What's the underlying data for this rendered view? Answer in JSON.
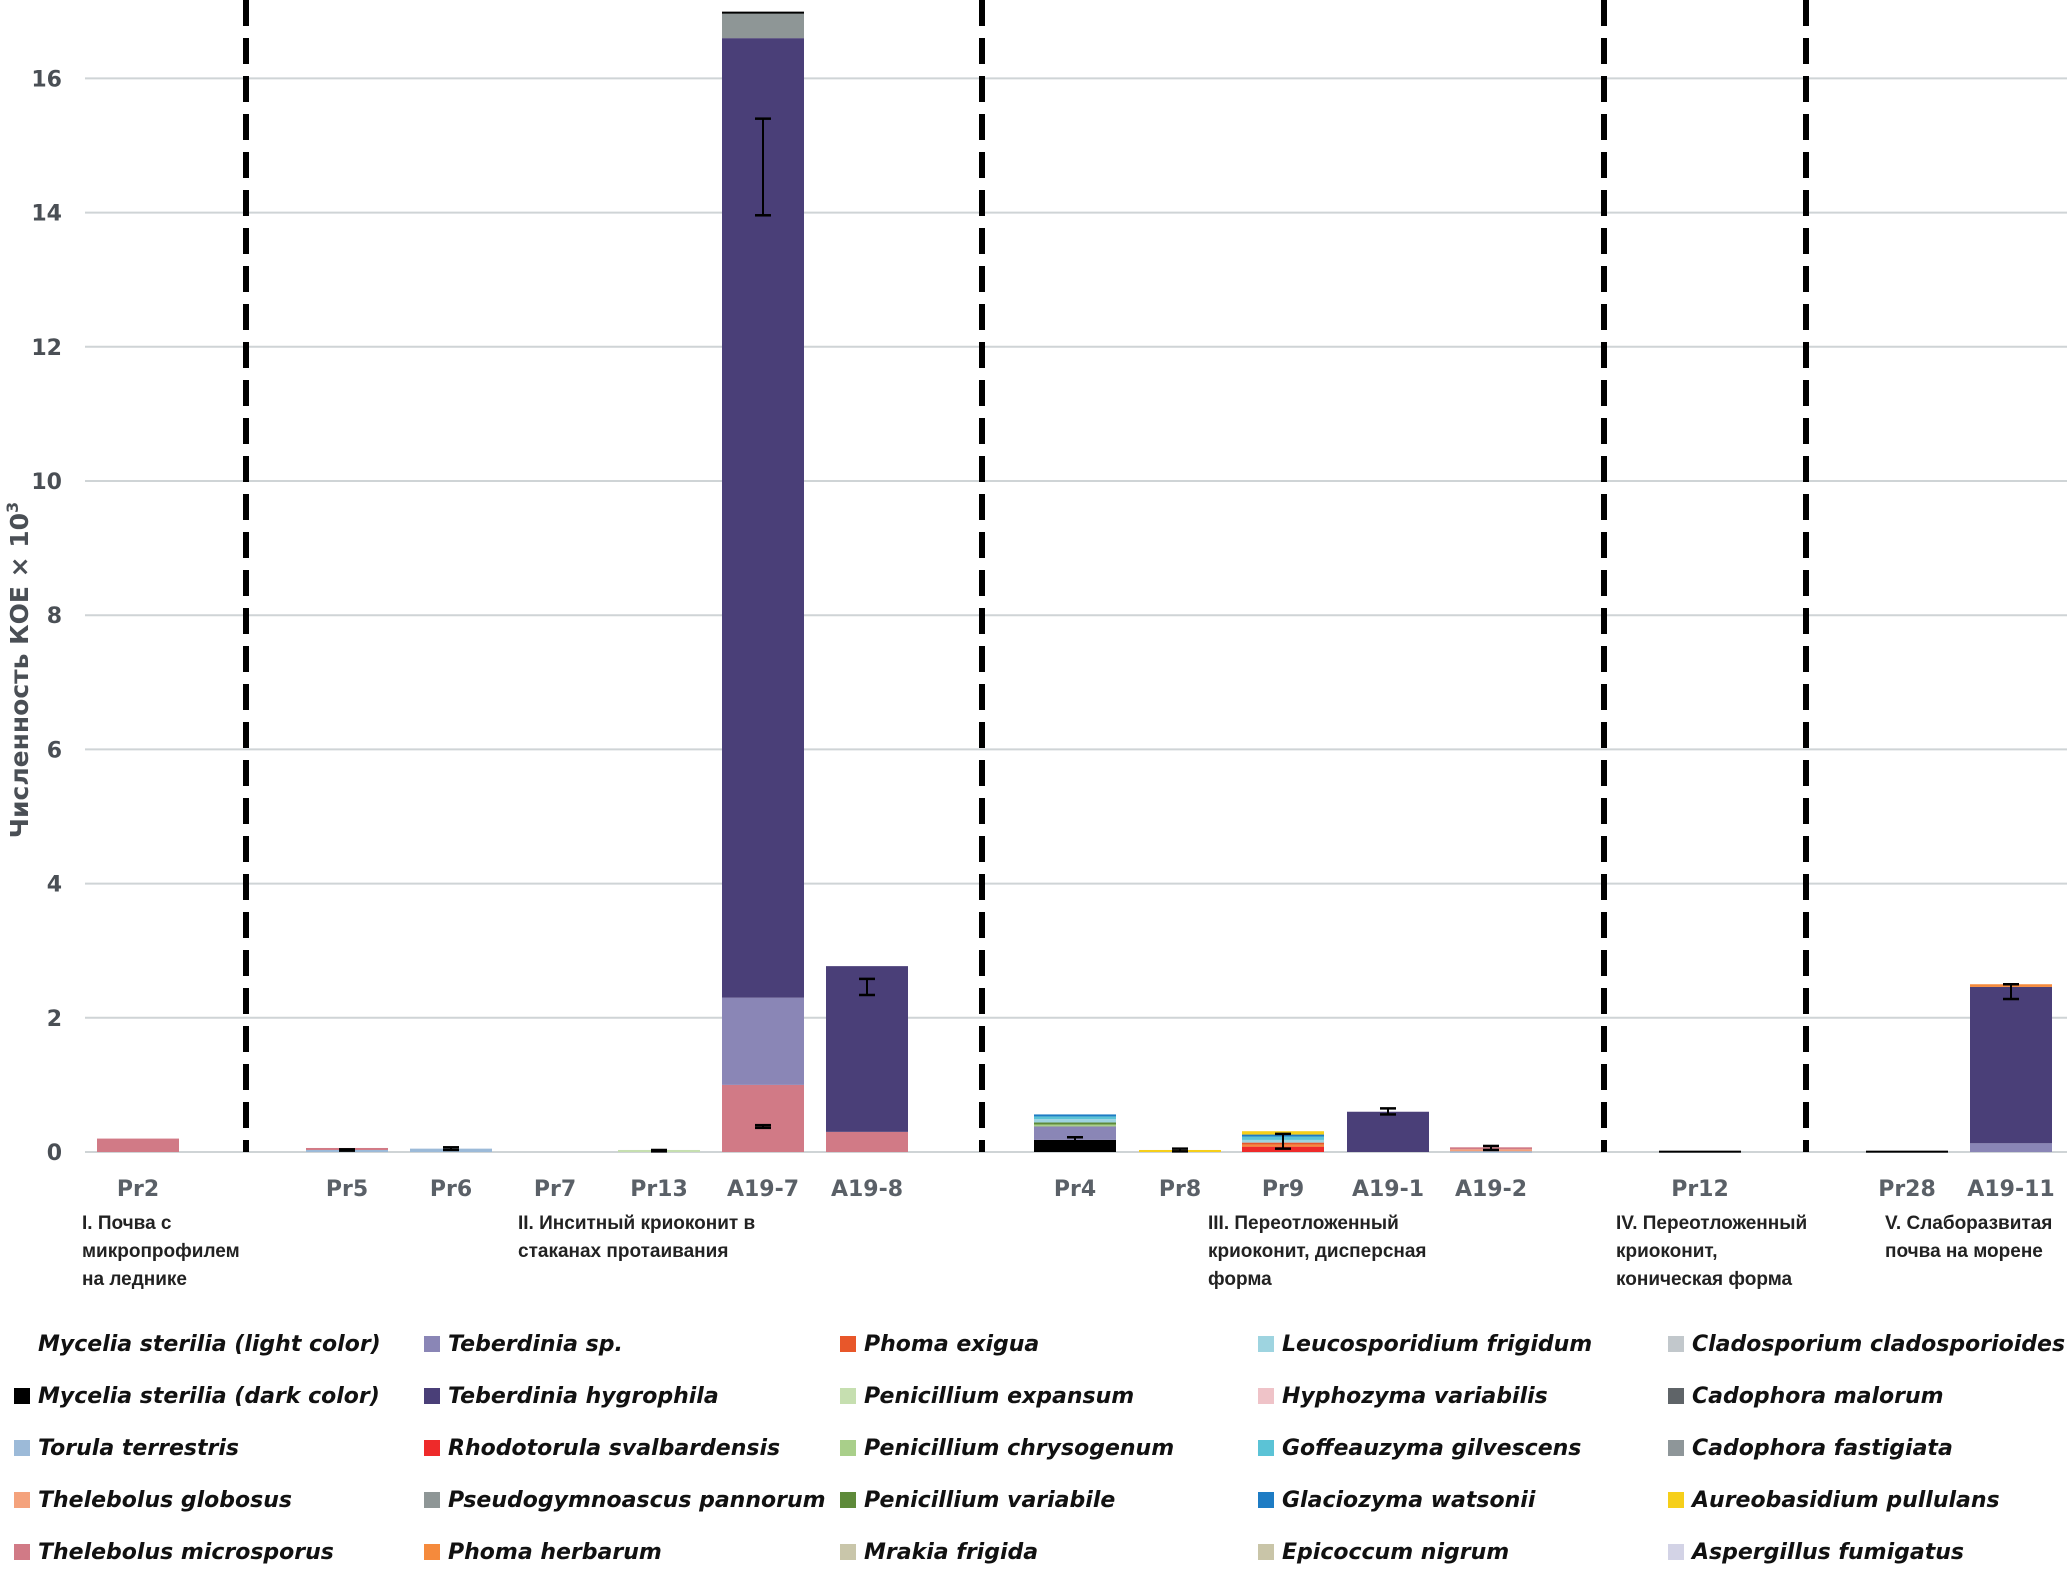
{
  "chart_data": {
    "type": "bar",
    "stacked": true,
    "title": "",
    "xlabel": "",
    "ylabel": "Численность КОЕ × 10",
    "ylabel_superscript": "3",
    "ylim": [
      0,
      17
    ],
    "yticks": [
      0,
      2,
      4,
      6,
      8,
      10,
      12,
      14,
      16
    ],
    "grid": true,
    "legend_position": "bottom",
    "categories": [
      "Pr2",
      "Pr5",
      "Pr6",
      "Pr7",
      "Pr13",
      "A19-7",
      "A19-8",
      "Pr4",
      "Pr8",
      "Pr9",
      "A19-1",
      "A19-2",
      "Pr12",
      "Pr28",
      "A19-11"
    ],
    "groups": [
      {
        "label": "I. Почва с микропрофилем на леднике",
        "lines": [
          "I. Почва с",
          "микропрофилем",
          "на леднике"
        ],
        "categories": [
          "Pr2"
        ]
      },
      {
        "label": "II. Инситный криоконит в стаканах протаивания",
        "lines": [
          "II. Инситный криоконит в",
          "стаканах протаивания"
        ],
        "categories": [
          "Pr5",
          "Pr6",
          "Pr7",
          "Pr13",
          "A19-7",
          "A19-8"
        ]
      },
      {
        "label": "III. Переотложенный криоконит, дисперсная форма",
        "lines": [
          "III. Переотложенный",
          "криоконит, дисперсная",
          "форма"
        ],
        "categories": [
          "Pr4",
          "Pr8",
          "Pr9",
          "A19-1",
          "A19-2"
        ]
      },
      {
        "label": "IV. Переотложенный криоконит, коническая форма",
        "lines": [
          "IV. Переотложенный",
          "криоконит,",
          "коническая форма"
        ],
        "categories": [
          "Pr12"
        ]
      },
      {
        "label": "V. Слаборазвитая почва на морене",
        "lines": [
          "V. Слаборазвитая",
          "почва на морене"
        ],
        "categories": [
          "Pr28",
          "A19-11"
        ]
      }
    ],
    "group_separators_after": [
      "Pr2",
      "A19-8",
      "A19-2",
      "Pr12"
    ],
    "series": [
      {
        "name": "Mycelia sterilia (light color)",
        "color": "#ffffff",
        "values": [
          0,
          0,
          0,
          0,
          0,
          0,
          0,
          0,
          0,
          0,
          0,
          0,
          0,
          0,
          0
        ]
      },
      {
        "name": "Mycelia sterilia (dark color)",
        "color": "#000000",
        "values": [
          0,
          0,
          0,
          0,
          0,
          0,
          0,
          0.18,
          0,
          0,
          0,
          0,
          0.02,
          0.02,
          0
        ]
      },
      {
        "name": "Torula terrestris",
        "color": "#9cbad8",
        "values": [
          0,
          0.03,
          0.05,
          0,
          0,
          0,
          0,
          0,
          0,
          0,
          0,
          0.02,
          0,
          0,
          0
        ]
      },
      {
        "name": "Thelebolus globosus",
        "color": "#f4a27c",
        "values": [
          0,
          0,
          0,
          0,
          0,
          0,
          0,
          0,
          0,
          0,
          0,
          0.02,
          0,
          0,
          0
        ]
      },
      {
        "name": "Thelebolus microsporus",
        "color": "#d17a86",
        "values": [
          0.2,
          0.03,
          0,
          0,
          0,
          1.0,
          0.3,
          0,
          0,
          0,
          0,
          0.03,
          0,
          0,
          0
        ]
      },
      {
        "name": "Teberdinia sp.",
        "color": "#8a86b6",
        "values": [
          0,
          0,
          0,
          0,
          0,
          1.3,
          0,
          0.2,
          0,
          0,
          0,
          0,
          0,
          0,
          0.13
        ]
      },
      {
        "name": "Teberdinia hygrophila",
        "color": "#4a3f78",
        "values": [
          0,
          0,
          0,
          0,
          0,
          14.3,
          2.47,
          0,
          0,
          0,
          0.6,
          0,
          0,
          0,
          2.33
        ]
      },
      {
        "name": "Rhodotorula svalbardensis",
        "color": "#ee2a2a",
        "values": [
          0,
          0,
          0,
          0,
          0,
          0,
          0,
          0,
          0,
          0.08,
          0,
          0,
          0,
          0,
          0
        ]
      },
      {
        "name": "Pseudogymnoascus pannorum",
        "color": "#8e9696",
        "values": [
          0,
          0,
          0,
          0,
          0,
          0.38,
          0,
          0,
          0,
          0,
          0,
          0,
          0,
          0,
          0
        ]
      },
      {
        "name": "Phoma herbarum",
        "color": "#f58a3c",
        "values": [
          0,
          0,
          0,
          0,
          0,
          0,
          0,
          0,
          0,
          0.03,
          0,
          0,
          0,
          0,
          0.04
        ]
      },
      {
        "name": "Phoma exigua",
        "color": "#e8572a",
        "values": [
          0,
          0,
          0,
          0,
          0,
          0,
          0,
          0,
          0,
          0.03,
          0,
          0,
          0,
          0,
          0
        ]
      },
      {
        "name": "Penicillium expansum",
        "color": "#c6dfb0",
        "values": [
          0,
          0,
          0,
          0,
          0.03,
          0,
          0,
          0,
          0,
          0,
          0,
          0,
          0,
          0,
          0
        ]
      },
      {
        "name": "Penicillium chrysogenum",
        "color": "#a9cf8a",
        "values": [
          0,
          0,
          0,
          0,
          0,
          0,
          0,
          0.03,
          0,
          0,
          0,
          0,
          0,
          0,
          0
        ]
      },
      {
        "name": "Penicillium variabile",
        "color": "#5e8a3a",
        "values": [
          0,
          0,
          0,
          0,
          0,
          0,
          0,
          0.03,
          0,
          0,
          0,
          0,
          0,
          0,
          0
        ]
      },
      {
        "name": "Mrakia frigida",
        "color": "#c9c6aa",
        "values": [
          0,
          0,
          0,
          0,
          0,
          0,
          0,
          0,
          0,
          0,
          0,
          0,
          0,
          0,
          0
        ]
      },
      {
        "name": "Leucosporidium frigidum",
        "color": "#9ed4e0",
        "values": [
          0,
          0,
          0,
          0,
          0,
          0,
          0,
          0.05,
          0,
          0.04,
          0,
          0,
          0,
          0,
          0
        ]
      },
      {
        "name": "Hyphozyma variabilis",
        "color": "#efc3c8",
        "values": [
          0,
          0,
          0,
          0,
          0,
          0,
          0,
          0,
          0,
          0,
          0,
          0,
          0,
          0,
          0
        ]
      },
      {
        "name": "Goffeauzyma gilvescens",
        "color": "#5bc3d6",
        "values": [
          0,
          0,
          0,
          0,
          0,
          0,
          0,
          0.04,
          0,
          0.05,
          0,
          0,
          0,
          0,
          0
        ]
      },
      {
        "name": "Glaciozyma watsonii",
        "color": "#1e7cc4",
        "values": [
          0,
          0,
          0,
          0,
          0,
          0,
          0,
          0.03,
          0,
          0.03,
          0,
          0,
          0,
          0,
          0
        ]
      },
      {
        "name": "Epicoccum nigrum",
        "color": "#c9c5a8",
        "values": [
          0,
          0,
          0,
          0,
          0,
          0,
          0,
          0,
          0,
          0,
          0,
          0,
          0,
          0,
          0
        ]
      },
      {
        "name": "Cladosporium cladosporioides",
        "color": "#c2c8cc",
        "values": [
          0,
          0,
          0,
          0,
          0,
          0,
          0,
          0,
          0,
          0,
          0,
          0,
          0,
          0,
          0
        ]
      },
      {
        "name": "Cadophora malorum",
        "color": "#5f6468",
        "values": [
          0,
          0,
          0,
          0,
          0,
          0,
          0,
          0,
          0,
          0,
          0,
          0,
          0,
          0,
          0
        ]
      },
      {
        "name": "Cadophora fastigiata",
        "color": "#8e9699",
        "values": [
          0,
          0,
          0,
          0,
          0,
          0,
          0,
          0,
          0,
          0,
          0,
          0,
          0,
          0,
          0
        ]
      },
      {
        "name": "Aureobasidium pullulans",
        "color": "#f6cf1a",
        "values": [
          0,
          0,
          0,
          0,
          0,
          0,
          0,
          0,
          0.03,
          0.05,
          0,
          0,
          0,
          0,
          0
        ]
      },
      {
        "name": "Aspergillus fumigatus",
        "color": "#d3d3e6",
        "values": [
          0,
          0,
          0,
          0,
          0,
          0,
          0,
          0,
          0,
          0,
          0,
          0,
          0,
          0,
          0
        ]
      }
    ],
    "error_bars": [
      {
        "category": "Pr5",
        "center": 0.03,
        "low": 0.02,
        "high": 0.04
      },
      {
        "category": "Pr6",
        "center": 0.05,
        "low": 0.03,
        "high": 0.07
      },
      {
        "category": "Pr13",
        "center": 0.02,
        "low": 0.01,
        "high": 0.03
      },
      {
        "category": "A19-7",
        "center": 14.7,
        "low": 13.96,
        "high": 15.4
      },
      {
        "category": "A19-7",
        "center": 0.38,
        "low": 0.36,
        "high": 0.4
      },
      {
        "category": "A19-8",
        "center": 2.46,
        "low": 2.34,
        "high": 2.58
      },
      {
        "category": "Pr4",
        "center": 0.15,
        "low": 0.05,
        "high": 0.22
      },
      {
        "category": "Pr8",
        "center": 0.03,
        "low": 0.01,
        "high": 0.05
      },
      {
        "category": "Pr9",
        "center": 0.15,
        "low": 0.05,
        "high": 0.27
      },
      {
        "category": "A19-1",
        "center": 0.6,
        "low": 0.56,
        "high": 0.65
      },
      {
        "category": "A19-2",
        "center": 0.06,
        "low": 0.03,
        "high": 0.09
      },
      {
        "category": "A19-11",
        "center": 2.39,
        "low": 2.28,
        "high": 2.5
      }
    ]
  },
  "legend": {
    "columns": [
      [
        "Mycelia sterilia (light color)",
        "Mycelia sterilia (dark color)",
        "Torula terrestris",
        "Thelebolus globosus",
        "Thelebolus microsporus"
      ],
      [
        "Teberdinia sp.",
        "Teberdinia hygrophila",
        "Rhodotorula svalbardensis",
        "Pseudogymnoascus pannorum",
        "Phoma herbarum"
      ],
      [
        "Phoma exigua",
        "Penicillium expansum",
        "Penicillium chrysogenum",
        "Penicillium variabile",
        "Mrakia frigida"
      ],
      [
        "Leucosporidium frigidum",
        "Hyphozyma variabilis",
        "Goffeauzyma gilvescens",
        "Glaciozyma watsonii",
        "Epicoccum nigrum"
      ],
      [
        "Cladosporium cladosporioides",
        "Cadophora malorum",
        "Cadophora fastigiata",
        "Aureobasidium pullulans",
        "Aspergillus fumigatus"
      ]
    ]
  }
}
